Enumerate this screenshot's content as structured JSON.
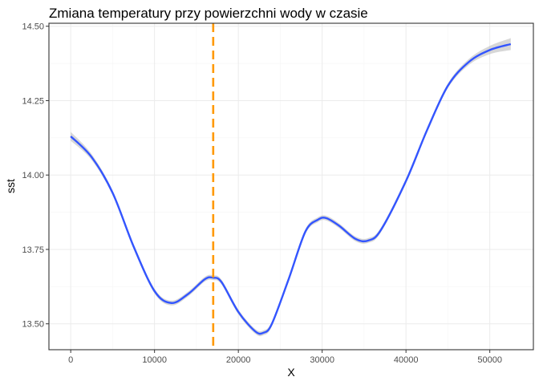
{
  "chart_data": {
    "type": "line",
    "title": "Zmiana temperatury przy powierzchni wody w czasie",
    "xlabel": "X",
    "ylabel": "sst",
    "xlim": [
      -2600,
      55200
    ],
    "ylim": [
      13.413,
      14.51
    ],
    "x_ticks": [
      0,
      10000,
      20000,
      30000,
      40000,
      50000
    ],
    "x_tick_labels": [
      "0",
      "10000",
      "20000",
      "30000",
      "40000",
      "50000"
    ],
    "y_ticks": [
      13.5,
      13.75,
      14.0,
      14.25,
      14.5
    ],
    "y_tick_labels": [
      "13.50",
      "13.75",
      "14.00",
      "14.25",
      "14.50"
    ],
    "grid": true,
    "series": [
      {
        "kind": "smooth",
        "color": "#3355ff",
        "band_color": "#bdbdbd",
        "x": [
          0,
          2500,
          5000,
          7500,
          10000,
          12000,
          14000,
          16000,
          17000,
          18000,
          20000,
          22000,
          23000,
          24000,
          26000,
          28000,
          29500,
          30500,
          32000,
          34000,
          35500,
          37000,
          40000,
          42500,
          45000,
          47500,
          50000,
          52500
        ],
        "y": [
          14.13,
          14.06,
          13.94,
          13.76,
          13.61,
          13.57,
          13.6,
          13.65,
          13.655,
          13.64,
          13.54,
          13.475,
          13.47,
          13.5,
          13.65,
          13.81,
          13.85,
          13.855,
          13.83,
          13.785,
          13.78,
          13.815,
          13.98,
          14.15,
          14.3,
          14.38,
          14.42,
          14.44
        ],
        "band": [
          0.015,
          0.01,
          0.008,
          0.008,
          0.008,
          0.008,
          0.008,
          0.008,
          0.008,
          0.008,
          0.008,
          0.008,
          0.008,
          0.008,
          0.008,
          0.008,
          0.008,
          0.008,
          0.008,
          0.008,
          0.008,
          0.008,
          0.008,
          0.008,
          0.008,
          0.01,
          0.014,
          0.02
        ]
      }
    ],
    "vline": {
      "x": 17000,
      "color": "#ff9900",
      "style": "dashed"
    }
  }
}
